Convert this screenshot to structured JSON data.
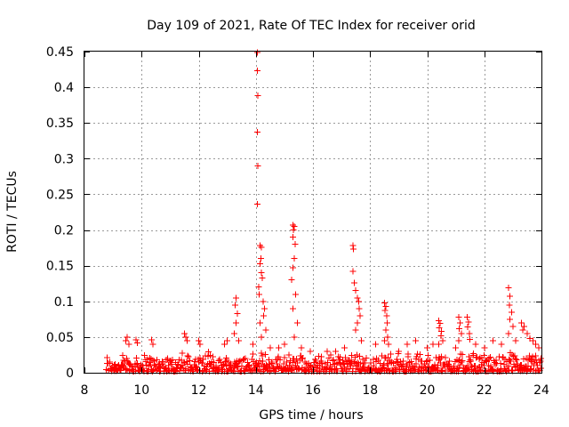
{
  "chart_data": {
    "type": "scatter",
    "title": "Day 109 of 2021, Rate Of TEC Index for receiver orid",
    "xlabel": "GPS time / hours",
    "ylabel": "ROTI / TECUs",
    "xlim": [
      8,
      24
    ],
    "ylim": [
      0,
      0.45
    ],
    "x_ticks": [
      8,
      10,
      12,
      14,
      16,
      18,
      20,
      22,
      24
    ],
    "y_ticks": [
      0,
      0.05,
      0.1,
      0.15,
      0.2,
      0.25,
      0.3,
      0.35,
      0.4,
      0.45
    ],
    "x_tick_labels": [
      "8",
      "10",
      "12",
      "14",
      "16",
      "18",
      "20",
      "22",
      "24"
    ],
    "y_tick_labels": [
      "0",
      "0.05",
      "0.1",
      "0.15",
      "0.2",
      "0.25",
      "0.3",
      "0.35",
      "0.4",
      "0.45"
    ],
    "grid": true,
    "marker": "+",
    "color": "#ff0000",
    "series": [
      {
        "name": "ROTI",
        "x": [
          14.05,
          14.05,
          14.07,
          14.05,
          14.07,
          14.05,
          14.15,
          14.2,
          14.18,
          14.15,
          14.2,
          14.22,
          14.1,
          14.12,
          14.25,
          14.3,
          14.28,
          14.15,
          14.35,
          14.2,
          15.3,
          15.35,
          15.32,
          15.3,
          15.38,
          15.35,
          15.3,
          15.25,
          15.4,
          15.3,
          15.45,
          15.35,
          17.4,
          17.42,
          17.4,
          17.45,
          17.5,
          17.55,
          17.6,
          17.62,
          17.65,
          17.55,
          17.5,
          17.7,
          18.5,
          18.55,
          18.52,
          18.58,
          18.6,
          18.55,
          18.62,
          18.5,
          18.65,
          13.3,
          13.28,
          13.35,
          13.3,
          13.25,
          13.4,
          20.4,
          20.45,
          20.42,
          20.5,
          20.48,
          20.55,
          20.4,
          21.1,
          21.15,
          21.12,
          21.2,
          21.1,
          21.4,
          21.45,
          21.42,
          21.48,
          21.5,
          22.85,
          22.9,
          22.88,
          22.95,
          22.9,
          23.0,
          22.85,
          23.1,
          23.3,
          23.4,
          23.35,
          23.5,
          23.6,
          23.7,
          23.8,
          23.9,
          9.5,
          9.45,
          9.55,
          9.8,
          9.85,
          10.35,
          10.4,
          11.5,
          11.55,
          11.6,
          12.0,
          12.05,
          12.9,
          13.0,
          13.9,
          14.5,
          14.8,
          15.0,
          15.6,
          15.9,
          16.5,
          16.8,
          17.1,
          18.2,
          19.0,
          19.3,
          19.6,
          20.0,
          20.2,
          21.0,
          21.7,
          22.0,
          22.3,
          22.6
        ],
        "y": [
          0.449,
          0.423,
          0.388,
          0.337,
          0.29,
          0.236,
          0.178,
          0.176,
          0.16,
          0.153,
          0.14,
          0.133,
          0.12,
          0.11,
          0.1,
          0.09,
          0.08,
          0.07,
          0.06,
          0.05,
          0.207,
          0.205,
          0.2,
          0.19,
          0.18,
          0.16,
          0.147,
          0.13,
          0.11,
          0.09,
          0.07,
          0.05,
          0.178,
          0.173,
          0.142,
          0.126,
          0.115,
          0.105,
          0.1,
          0.09,
          0.08,
          0.07,
          0.06,
          0.045,
          0.098,
          0.093,
          0.087,
          0.08,
          0.07,
          0.06,
          0.05,
          0.045,
          0.04,
          0.105,
          0.095,
          0.083,
          0.07,
          0.055,
          0.045,
          0.073,
          0.069,
          0.063,
          0.058,
          0.052,
          0.045,
          0.04,
          0.078,
          0.07,
          0.062,
          0.055,
          0.045,
          0.078,
          0.071,
          0.064,
          0.055,
          0.047,
          0.119,
          0.107,
          0.095,
          0.085,
          0.075,
          0.065,
          0.055,
          0.045,
          0.07,
          0.065,
          0.06,
          0.055,
          0.048,
          0.045,
          0.04,
          0.035,
          0.05,
          0.045,
          0.04,
          0.046,
          0.042,
          0.046,
          0.04,
          0.055,
          0.05,
          0.045,
          0.045,
          0.04,
          0.04,
          0.045,
          0.04,
          0.035,
          0.035,
          0.04,
          0.035,
          0.03,
          0.03,
          0.03,
          0.035,
          0.04,
          0.03,
          0.04,
          0.045,
          0.035,
          0.04,
          0.035,
          0.04,
          0.035,
          0.045,
          0.04
        ]
      }
    ],
    "baseline_band": {
      "x_start": 8.75,
      "x_end": 24,
      "y_min": 0.002,
      "y_max": 0.03,
      "markers_per_hour": 55
    }
  }
}
